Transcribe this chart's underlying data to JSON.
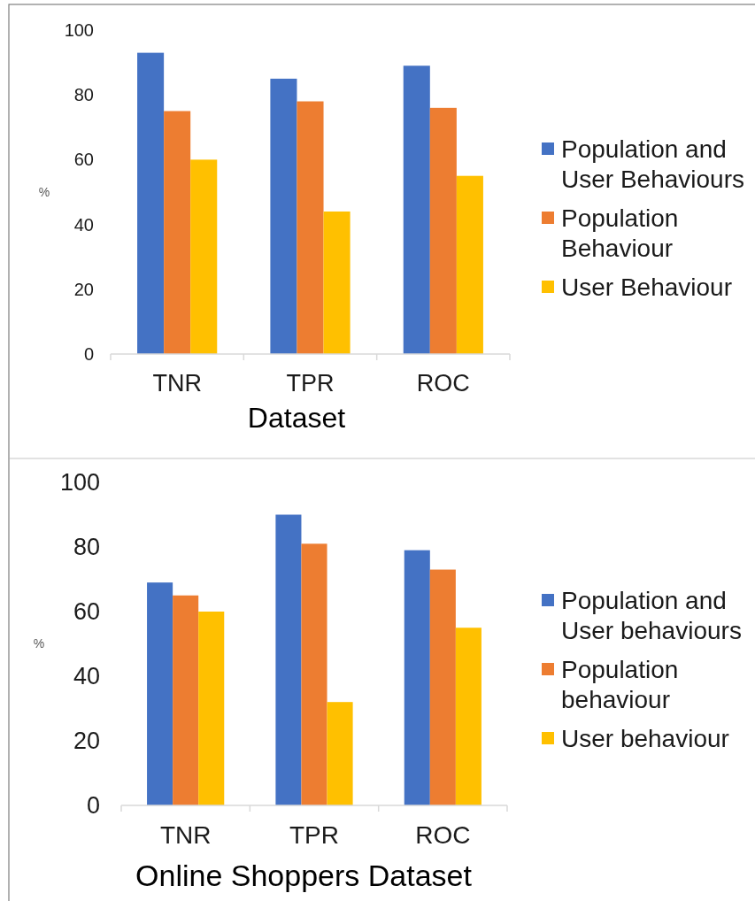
{
  "chart_data": [
    {
      "type": "bar",
      "xlabel": "Dataset",
      "ylabel": "%",
      "categories": [
        "TNR",
        "TPR",
        "ROC"
      ],
      "series": [
        {
          "name": "Population and User Behaviours",
          "color": "#4472c4",
          "values": [
            93,
            85,
            89
          ]
        },
        {
          "name": "Population Behaviour",
          "color": "#ed7d31",
          "values": [
            75,
            78,
            76
          ]
        },
        {
          "name": "User Behaviour",
          "color": "#ffc000",
          "values": [
            60,
            44,
            55
          ]
        }
      ],
      "ylim": [
        0,
        100
      ],
      "yticks": [
        0,
        20,
        40,
        60,
        80,
        100
      ],
      "grid": false,
      "legend": "right"
    },
    {
      "type": "bar",
      "xlabel": "Online Shoppers Dataset",
      "ylabel": "%",
      "categories": [
        "TNR",
        "TPR",
        "ROC"
      ],
      "series": [
        {
          "name": "Population and User behaviours",
          "color": "#4472c4",
          "values": [
            69,
            90,
            79
          ]
        },
        {
          "name": "Population behaviour",
          "color": "#ed7d31",
          "values": [
            65,
            81,
            73
          ]
        },
        {
          "name": "User behaviour",
          "color": "#ffc000",
          "values": [
            60,
            32,
            55
          ]
        }
      ],
      "ylim": [
        0,
        100
      ],
      "yticks": [
        0,
        20,
        40,
        60,
        80,
        100
      ],
      "grid": false,
      "legend": "right"
    }
  ]
}
